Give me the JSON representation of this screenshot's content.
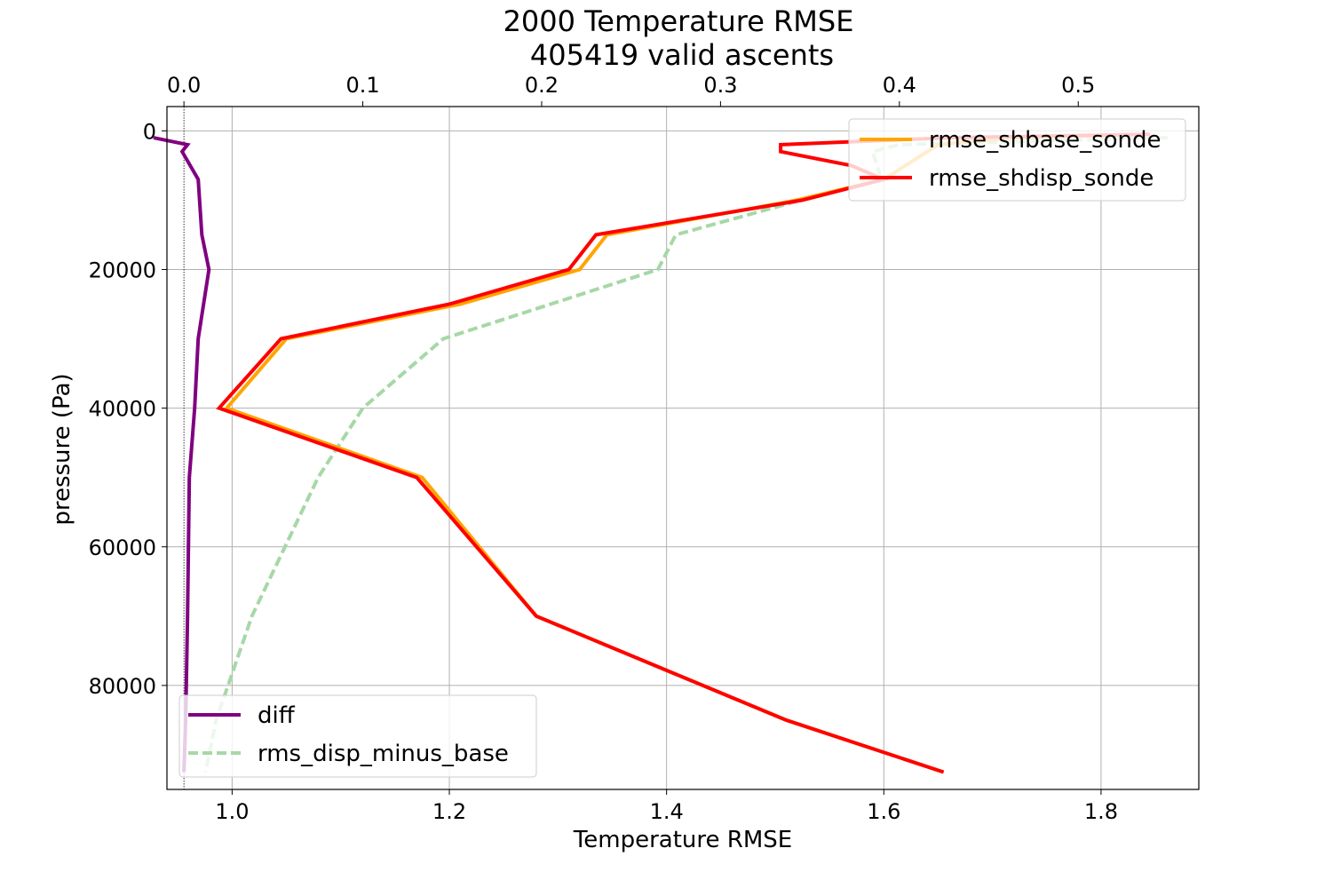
{
  "chart_data": {
    "type": "line",
    "title": "2000 Temperature RMSE",
    "subtitle": "405419 valid ascents",
    "xlabel": "Temperature RMSE",
    "ylabel": "pressure (Pa)",
    "xlim_bottom": [
      0.94,
      1.89
    ],
    "xlim_top": [
      -0.0095,
      0.5674
    ],
    "ylim": [
      95000,
      -3500
    ],
    "y_inverted": true,
    "grid": true,
    "bottom_ticks": [
      "1.0",
      "1.2",
      "1.4",
      "1.6",
      "1.8"
    ],
    "top_ticks": [
      "0.0",
      "0.1",
      "0.2",
      "0.3",
      "0.4",
      "0.5"
    ],
    "y_ticks": [
      "0",
      "20000",
      "40000",
      "60000",
      "80000"
    ],
    "zero_line_top_axis": 0.0,
    "legend_upper": {
      "placement": "upper-right",
      "entries": [
        "rmse_shbase_sonde",
        "rmse_shdisp_sonde"
      ]
    },
    "legend_lower": {
      "placement": "lower-left",
      "entries": [
        "diff",
        "rms_disp_minus_base"
      ]
    },
    "series": [
      {
        "name": "rmse_shbase_sonde",
        "axis": "bottom",
        "color": "#ffa500",
        "style": "solid",
        "x": [
          1.845,
          1.72,
          1.65,
          1.6,
          1.52,
          1.345,
          1.32,
          1.21,
          1.05,
          0.995,
          1.175,
          1.28,
          1.51,
          1.655
        ],
        "y": [
          500,
          1000,
          2000,
          7000,
          10000,
          15000,
          20000,
          25000,
          30000,
          40000,
          50000,
          70000,
          85000,
          92500
        ]
      },
      {
        "name": "rmse_shdisp_sonde",
        "axis": "bottom",
        "color": "#ff0000",
        "style": "solid",
        "x": [
          1.845,
          1.66,
          1.505,
          1.505,
          1.57,
          1.6,
          1.525,
          1.335,
          1.31,
          1.2,
          1.045,
          0.988,
          1.17,
          1.28,
          1.51,
          1.655
        ],
        "y": [
          500,
          1000,
          2000,
          3000,
          5000,
          7000,
          10000,
          15000,
          20000,
          25000,
          30000,
          40000,
          50000,
          70000,
          85000,
          92500
        ]
      },
      {
        "name": "diff",
        "axis": "top",
        "color": "#800080",
        "style": "solid",
        "x": [
          -0.017,
          0.002,
          -0.001,
          0.008,
          0.01,
          0.014,
          0.008,
          0.006,
          0.003,
          0.002,
          0.001,
          0.0
        ],
        "y": [
          1000,
          2000,
          3000,
          7000,
          15000,
          20000,
          30000,
          40000,
          50000,
          70000,
          85000,
          92500
        ]
      },
      {
        "name": "rms_disp_minus_base",
        "axis": "top",
        "color": "#a6d8a6",
        "style": "dashed",
        "x": [
          0.55,
          0.4,
          0.385,
          0.39,
          0.345,
          0.275,
          0.265,
          0.145,
          0.1,
          0.075,
          0.038,
          0.018,
          0.012
        ],
        "y": [
          1000,
          2000,
          3000,
          7000,
          10000,
          15000,
          20000,
          30000,
          40000,
          50000,
          70000,
          85000,
          92500
        ]
      }
    ]
  }
}
